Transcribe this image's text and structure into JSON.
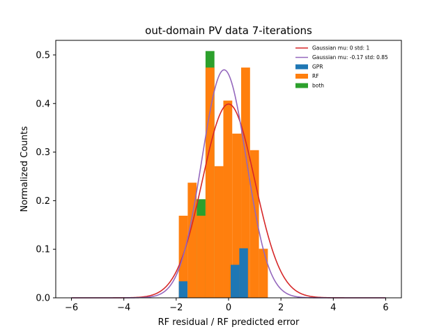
{
  "chart_data": {
    "type": "histogram",
    "title": "out-domain PV data 7-iterations",
    "xlabel": "RF residual / RF predicted error",
    "ylabel": "Normalized Counts",
    "xlim": [
      -6.6,
      6.6
    ],
    "ylim": [
      0,
      0.53
    ],
    "xticks": [
      -6,
      -4,
      -2,
      0,
      2,
      4,
      6
    ],
    "xtick_labels": [
      "−6",
      "−4",
      "−2",
      "0",
      "2",
      "4",
      "6"
    ],
    "yticks": [
      0.0,
      0.1,
      0.2,
      0.3,
      0.4,
      0.5
    ],
    "ytick_labels": [
      "0.0",
      "0.1",
      "0.2",
      "0.3",
      "0.4",
      "0.5"
    ],
    "legend_position": "upper-right",
    "bins_edges": [
      -1.9,
      -1.57,
      -1.24,
      -0.91,
      -0.58,
      -0.25,
      0.08,
      0.41,
      0.74,
      1.07,
      1.4
    ],
    "histograms": [
      {
        "name": "GPR",
        "color": "#1f77b4",
        "values": [
          0.034,
          0.0,
          0.0,
          0.0,
          0.0,
          0.0,
          0.068,
          0.102,
          0.0,
          0.0
        ]
      },
      {
        "name": "RF",
        "color": "#ff7f0e",
        "bins_edges": [
          -1.9,
          -1.56,
          -1.22,
          -0.88,
          -0.54,
          -0.2,
          0.14,
          0.48,
          0.82,
          1.16,
          1.5
        ],
        "values": [
          0.169,
          0.237,
          0.169,
          0.474,
          0.271,
          0.406,
          0.338,
          0.474,
          0.304,
          0.101
        ]
      },
      {
        "name": "both",
        "color": "#2ca02c",
        "bins_edges": [
          -1.9,
          -1.56,
          -1.22,
          -0.88,
          -0.54,
          -0.2,
          0.14,
          0.48,
          0.82,
          1.16,
          1.5
        ],
        "values": [
          0.0,
          0.0,
          0.203,
          0.508,
          0.0,
          0.0,
          0.0,
          0.0,
          0.0,
          0.0
        ]
      }
    ],
    "curves": [
      {
        "name": "Gaussian mu: 0 std: 1",
        "color": "#d62728",
        "mu": 0,
        "std": 1,
        "x_range": [
          -6,
          6
        ]
      },
      {
        "name": "Gaussian mu: -0.17 std: 0.85",
        "color": "#9467bd",
        "mu": -0.17,
        "std": 0.85,
        "x_range": [
          -6,
          6
        ]
      }
    ],
    "legend": [
      {
        "label": "Gaussian mu: 0 std: 1",
        "kind": "line",
        "color": "#d62728"
      },
      {
        "label": "Gaussian mu: -0.17 std: 0.85",
        "kind": "line",
        "color": "#9467bd"
      },
      {
        "label": "GPR",
        "kind": "patch",
        "color": "#1f77b4"
      },
      {
        "label": "RF",
        "kind": "patch",
        "color": "#ff7f0e"
      },
      {
        "label": "both",
        "kind": "patch",
        "color": "#2ca02c"
      }
    ]
  }
}
